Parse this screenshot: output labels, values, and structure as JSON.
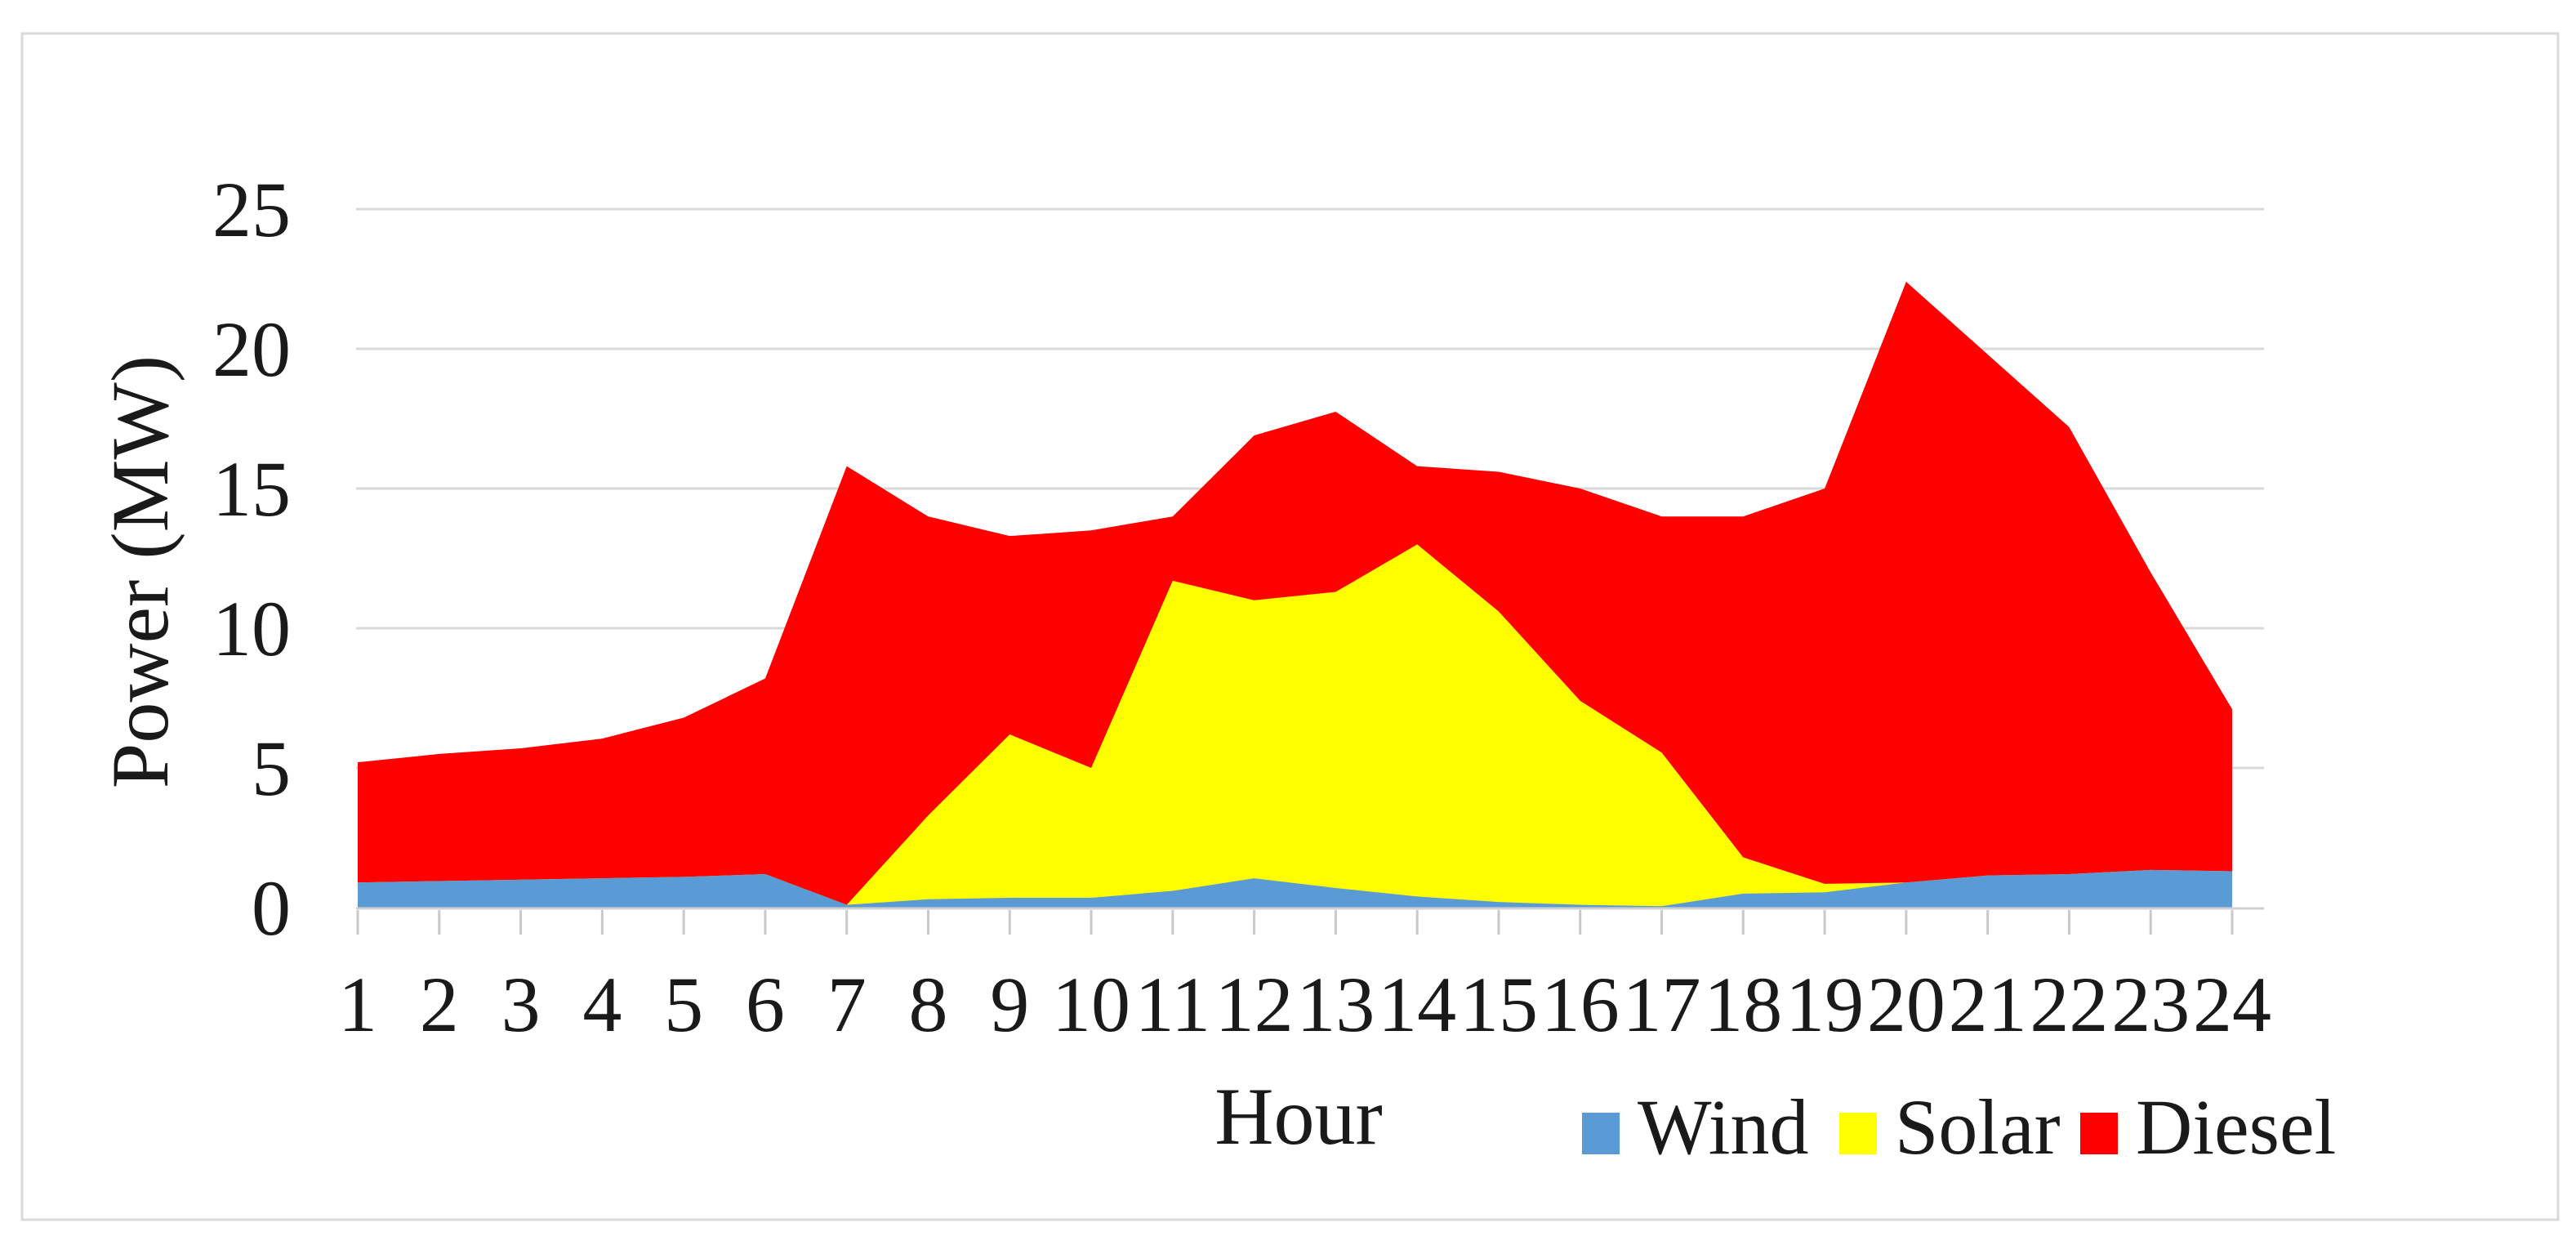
{
  "figure": {
    "background": "#FFFFFF",
    "border_color": "#D9D9D9"
  },
  "chart_data": {
    "type": "area",
    "stacked": true,
    "title": "",
    "xlabel": "Hour",
    "ylabel": "Power (MW)",
    "x": [
      1,
      2,
      3,
      4,
      5,
      6,
      7,
      8,
      9,
      10,
      11,
      12,
      13,
      14,
      15,
      16,
      17,
      18,
      19,
      20,
      21,
      22,
      23,
      24
    ],
    "x_tick_labels": [
      "1",
      "2",
      "3",
      "4",
      "5",
      "6",
      "7",
      "8",
      "9",
      "10",
      "11",
      "12",
      "13",
      "14",
      "15",
      "16",
      "17",
      "18",
      "19",
      "20",
      "21",
      "22",
      "23",
      "24"
    ],
    "ylim": [
      0,
      25
    ],
    "y_ticks": [
      0,
      5,
      10,
      15,
      20,
      25
    ],
    "y_tick_labels": [
      "0",
      "5",
      "10",
      "15",
      "20",
      "25"
    ],
    "grid": "horizontal",
    "legend_position": "bottom-right",
    "series": [
      {
        "name": "Wind",
        "color": "#5B9BD5",
        "values": [
          0.9,
          0.95,
          1.0,
          1.05,
          1.1,
          1.2,
          0.1,
          0.3,
          0.35,
          0.35,
          0.6,
          1.05,
          0.7,
          0.4,
          0.2,
          0.1,
          0.05,
          0.5,
          0.55,
          0.9,
          1.15,
          1.2,
          1.35,
          1.3
        ]
      },
      {
        "name": "Solar",
        "color": "#FFFF00",
        "values": [
          0,
          0,
          0,
          0,
          0,
          0,
          0,
          3.0,
          5.85,
          4.65,
          11.1,
          9.95,
          10.6,
          12.6,
          10.4,
          7.3,
          5.5,
          1.3,
          0.3,
          0,
          0,
          0,
          0,
          0
        ]
      },
      {
        "name": "Diesel",
        "color": "#FF0000",
        "values": [
          4.3,
          4.55,
          4.7,
          5.0,
          5.7,
          7.0,
          15.7,
          10.7,
          7.1,
          8.5,
          2.3,
          5.9,
          6.45,
          2.8,
          5.0,
          7.6,
          8.45,
          12.2,
          14.15,
          21.5,
          18.65,
          16.0,
          10.65,
          5.8
        ]
      }
    ],
    "gridline_color": "#D9D9D9",
    "axis_line_color": "#D0D0D0",
    "tick_mark_color": "#C9C9C9",
    "text_color": "#1A1A1A"
  }
}
